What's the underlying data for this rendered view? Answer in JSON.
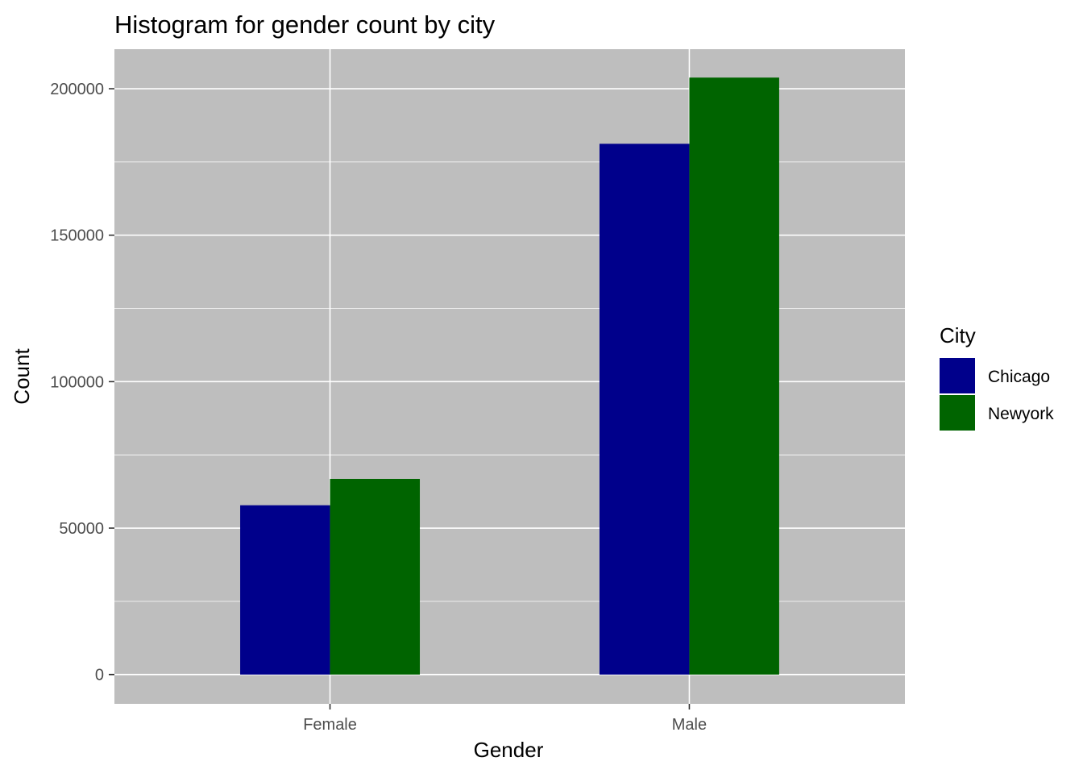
{
  "chart_data": {
    "type": "bar",
    "title": "Histogram for gender count by city",
    "xlabel": "Gender",
    "ylabel": "Count",
    "categories": [
      "Female",
      "Male"
    ],
    "series": [
      {
        "name": "Chicago",
        "values": [
          57800,
          181200
        ],
        "color": "#00008b"
      },
      {
        "name": "Newyork",
        "values": [
          66800,
          203800
        ],
        "color": "#006400"
      }
    ],
    "ylim": [
      -10000,
      213500
    ],
    "yticks": [
      0,
      50000,
      100000,
      150000,
      200000
    ],
    "ytick_labels": [
      "0",
      "50000",
      "100000",
      "150000",
      "200000"
    ],
    "grid": true,
    "panel_background": "#bebebe",
    "grid_color": "#ffffff",
    "legend": {
      "title": "City",
      "position": "right"
    }
  }
}
